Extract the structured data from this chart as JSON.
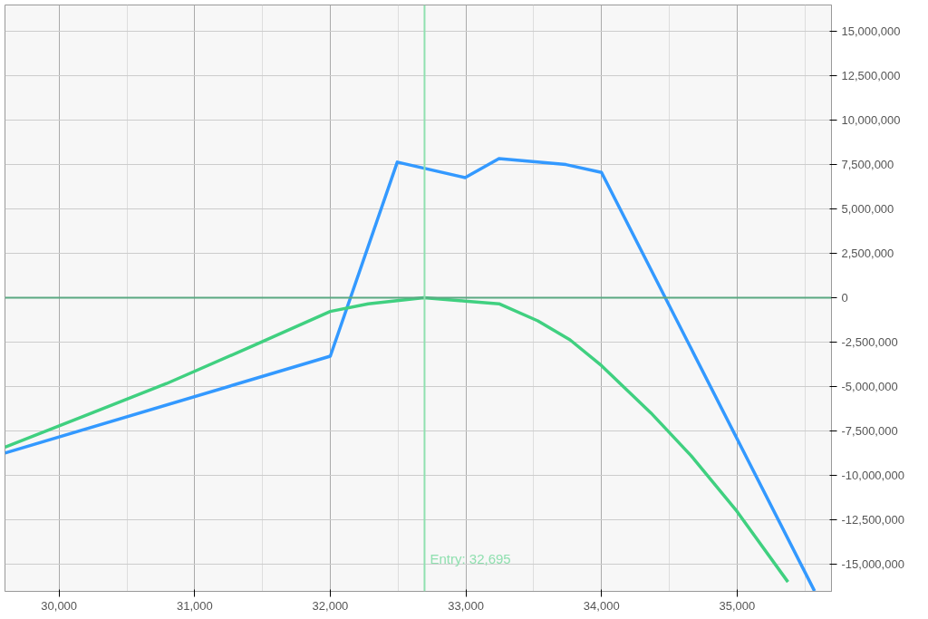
{
  "chart_data": {
    "type": "line",
    "xlim": [
      29601,
      35696
    ],
    "ylim": [
      -16520000,
      16470000
    ],
    "xticks": [
      {
        "value": 30000,
        "label": "30,000"
      },
      {
        "value": 31000,
        "label": "31,000"
      },
      {
        "value": 32000,
        "label": "32,000"
      },
      {
        "value": 33000,
        "label": "33,000"
      },
      {
        "value": 34000,
        "label": "34,000"
      },
      {
        "value": 35000,
        "label": "35,000"
      }
    ],
    "yticks": [
      {
        "value": -15000000,
        "label": "-15,000,000"
      },
      {
        "value": -12500000,
        "label": "-12,500,000"
      },
      {
        "value": -10000000,
        "label": "-10,000,000"
      },
      {
        "value": -7500000,
        "label": "-7,500,000"
      },
      {
        "value": -5000000,
        "label": "-5,000,000"
      },
      {
        "value": -2500000,
        "label": "-2,500,000"
      },
      {
        "value": 0,
        "label": "0"
      },
      {
        "value": 2500000,
        "label": "2,500,000"
      },
      {
        "value": 5000000,
        "label": "5,000,000"
      },
      {
        "value": 7500000,
        "label": "7,500,000"
      },
      {
        "value": 10000000,
        "label": "10,000,000"
      },
      {
        "value": 12500000,
        "label": "12,500,000"
      },
      {
        "value": 15000000,
        "label": "15,000,000"
      }
    ],
    "grid": true,
    "marker": "none",
    "line_style": "solid",
    "series": [
      {
        "color": "#3399ff",
        "x": [
          29601,
          32000,
          32494,
          32994,
          33244,
          33738,
          34000,
          35571
        ],
        "values": [
          -8740000,
          -3290000,
          7630000,
          6760000,
          7830000,
          7490000,
          7050000,
          -16500000
        ]
      },
      {
        "color": "#40d080",
        "x": [
          29601,
          30196,
          30792,
          31387,
          32000,
          32280,
          32690,
          32994,
          33244,
          33530,
          33768,
          34000,
          34363,
          34661,
          35000,
          35375
        ],
        "values": [
          -8410000,
          -6620000,
          -4830000,
          -2850000,
          -770000,
          -340000,
          0,
          -190000,
          -340000,
          -1300000,
          -2370000,
          -3820000,
          -6470000,
          -8890000,
          -12030000,
          -15990000
        ]
      }
    ],
    "ref_lines": [
      {
        "axis": "y",
        "value": 0,
        "color": "#5aa882"
      },
      {
        "axis": "x",
        "value": 32695,
        "label": "Entry: 32,695",
        "color": "#90e0b0"
      }
    ]
  }
}
